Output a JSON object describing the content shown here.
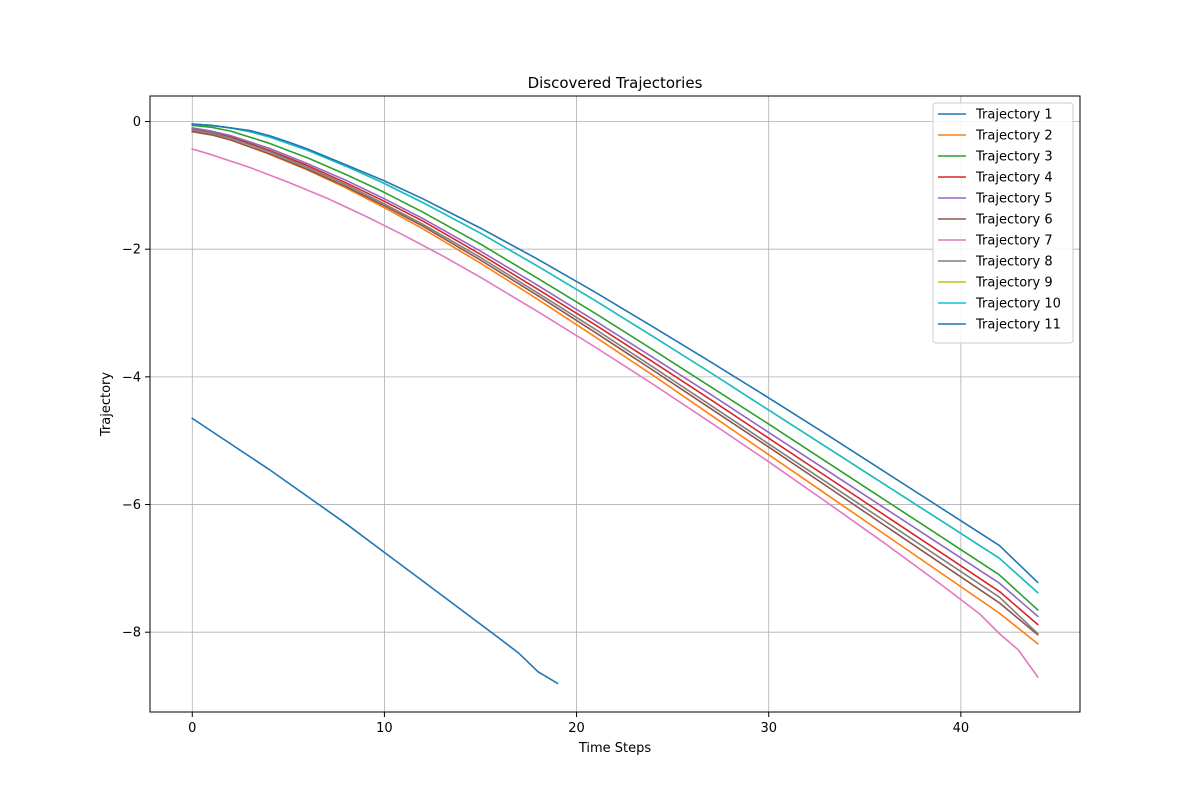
{
  "chart_data": {
    "type": "line",
    "title": "Discovered Trajectories",
    "xlabel": "Time Steps",
    "ylabel": "Trajectory",
    "xlim": [
      -2.2,
      46.2
    ],
    "ylim": [
      -9.25,
      0.4
    ],
    "xticks": [
      0,
      10,
      20,
      30,
      40
    ],
    "yticks": [
      0,
      -2,
      -4,
      -6,
      -8
    ],
    "xtick_labels": [
      "0",
      "10",
      "20",
      "30",
      "40"
    ],
    "ytick_labels": [
      "0",
      "−2",
      "−4",
      "−6",
      "−8"
    ],
    "grid": true,
    "legend_position": "top-right",
    "series": [
      {
        "name": "Trajectory 1",
        "color": "#1f77b4",
        "x": [
          0,
          4,
          8,
          12,
          16,
          17,
          18,
          19
        ],
        "y": [
          -4.65,
          -5.45,
          -6.3,
          -7.2,
          -8.1,
          -8.33,
          -8.62,
          -8.8
        ]
      },
      {
        "name": "Trajectory 2",
        "color": "#ff7f0e",
        "x": [
          0,
          1,
          2,
          4,
          6,
          8,
          10,
          12,
          15,
          18,
          21,
          24,
          27,
          30,
          33,
          36,
          39,
          42,
          44
        ],
        "y": [
          -0.15,
          -0.2,
          -0.29,
          -0.51,
          -0.76,
          -1.04,
          -1.35,
          -1.68,
          -2.22,
          -2.79,
          -3.38,
          -3.98,
          -4.6,
          -5.22,
          -5.84,
          -6.46,
          -7.08,
          -7.7,
          -8.18
        ]
      },
      {
        "name": "Trajectory 3",
        "color": "#2ca02c",
        "x": [
          0,
          1,
          2,
          4,
          6,
          8,
          10,
          12,
          15,
          18,
          21,
          24,
          27,
          30,
          33,
          36,
          39,
          42,
          44
        ],
        "y": [
          -0.06,
          -0.09,
          -0.15,
          -0.34,
          -0.57,
          -0.83,
          -1.11,
          -1.42,
          -1.92,
          -2.46,
          -3.01,
          -3.58,
          -4.16,
          -4.74,
          -5.33,
          -5.92,
          -6.51,
          -7.1,
          -7.65
        ]
      },
      {
        "name": "Trajectory 4",
        "color": "#d62728",
        "x": [
          0,
          1,
          2,
          4,
          6,
          8,
          10,
          12,
          15,
          18,
          21,
          24,
          27,
          30,
          33,
          36,
          39,
          42,
          44
        ],
        "y": [
          -0.11,
          -0.16,
          -0.24,
          -0.45,
          -0.69,
          -0.96,
          -1.25,
          -1.56,
          -2.08,
          -2.63,
          -3.19,
          -3.77,
          -4.36,
          -4.96,
          -5.56,
          -6.16,
          -6.76,
          -7.36,
          -7.88
        ]
      },
      {
        "name": "Trajectory 5",
        "color": "#9467bd",
        "x": [
          0,
          1,
          2,
          4,
          6,
          8,
          10,
          12,
          15,
          18,
          21,
          24,
          27,
          30,
          33,
          36,
          39,
          42,
          44
        ],
        "y": [
          -0.1,
          -0.15,
          -0.22,
          -0.42,
          -0.66,
          -0.92,
          -1.21,
          -1.52,
          -2.03,
          -2.57,
          -3.13,
          -3.7,
          -4.28,
          -4.87,
          -5.46,
          -6.05,
          -6.64,
          -7.23,
          -7.75
        ]
      },
      {
        "name": "Trajectory 6",
        "color": "#8c564b",
        "x": [
          0,
          1,
          2,
          4,
          6,
          8,
          10,
          12,
          15,
          18,
          21,
          24,
          27,
          30,
          33,
          36,
          39,
          42,
          44
        ],
        "y": [
          -0.16,
          -0.21,
          -0.29,
          -0.5,
          -0.75,
          -1.02,
          -1.32,
          -1.64,
          -2.17,
          -2.73,
          -3.31,
          -3.9,
          -4.5,
          -5.1,
          -5.71,
          -6.32,
          -6.93,
          -7.54,
          -8.04
        ]
      },
      {
        "name": "Trajectory 7",
        "color": "#e377c2",
        "x": [
          0,
          1,
          2,
          3,
          5,
          7,
          9,
          11,
          13,
          15,
          18,
          21,
          24,
          27,
          30,
          33,
          36,
          39,
          41,
          42,
          43,
          44
        ],
        "y": [
          -0.43,
          -0.52,
          -0.62,
          -0.72,
          -0.95,
          -1.2,
          -1.48,
          -1.78,
          -2.1,
          -2.44,
          -2.98,
          -3.54,
          -4.12,
          -4.72,
          -5.33,
          -5.96,
          -6.6,
          -7.26,
          -7.72,
          -8.02,
          -8.28,
          -8.7
        ]
      },
      {
        "name": "Trajectory 8",
        "color": "#7f7f7f",
        "x": [
          0,
          1,
          2,
          4,
          6,
          8,
          10,
          12,
          15,
          18,
          21,
          24,
          27,
          30,
          33,
          36,
          39,
          42,
          44
        ],
        "y": [
          -0.13,
          -0.18,
          -0.26,
          -0.47,
          -0.72,
          -0.99,
          -1.29,
          -1.61,
          -2.13,
          -2.69,
          -3.26,
          -3.85,
          -4.45,
          -5.05,
          -5.65,
          -6.25,
          -6.85,
          -7.45,
          -8.02
        ]
      },
      {
        "name": "Trajectory 9",
        "color": "#bcbd22",
        "x": [
          0,
          1,
          2,
          3,
          4,
          6,
          8,
          10,
          12,
          15,
          18,
          21,
          24,
          27,
          30,
          33,
          36,
          39,
          42,
          44
        ],
        "y": [
          -0.04,
          -0.06,
          -0.1,
          -0.16,
          -0.24,
          -0.45,
          -0.7,
          -0.97,
          -1.27,
          -1.75,
          -2.27,
          -2.81,
          -3.37,
          -3.94,
          -4.52,
          -5.1,
          -5.68,
          -6.26,
          -6.84,
          -7.38
        ]
      },
      {
        "name": "Trajectory 10",
        "color": "#17becf",
        "x": [
          0,
          1,
          2,
          3,
          4,
          6,
          8,
          10,
          12,
          15,
          18,
          21,
          24,
          27,
          30,
          33,
          36,
          39,
          42,
          44
        ],
        "y": [
          -0.04,
          -0.06,
          -0.1,
          -0.16,
          -0.24,
          -0.45,
          -0.7,
          -0.97,
          -1.27,
          -1.75,
          -2.27,
          -2.81,
          -3.37,
          -3.94,
          -4.52,
          -5.1,
          -5.68,
          -6.26,
          -6.84,
          -7.38
        ]
      },
      {
        "name": "Trajectory 11",
        "color": "#1f77b4",
        "x": [
          0,
          1,
          2,
          3,
          4,
          5,
          6,
          8,
          10,
          12,
          15,
          18,
          21,
          24,
          27,
          30,
          33,
          36,
          39,
          42,
          44
        ],
        "y": [
          -0.04,
          -0.06,
          -0.1,
          -0.14,
          -0.22,
          -0.32,
          -0.43,
          -0.68,
          -0.93,
          -1.21,
          -1.67,
          -2.16,
          -2.68,
          -3.22,
          -3.77,
          -4.33,
          -4.9,
          -5.48,
          -6.06,
          -6.64,
          -7.22
        ]
      }
    ]
  }
}
